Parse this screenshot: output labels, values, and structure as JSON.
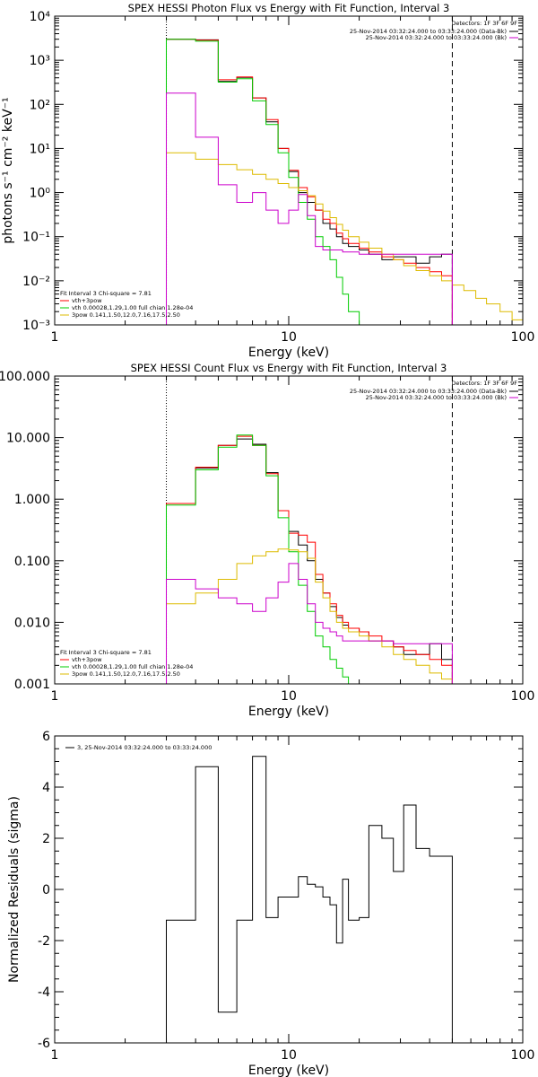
{
  "chart_data": [
    {
      "type": "line",
      "step": true,
      "title": "SPEX HESSI Photon Flux vs Energy with Fit Function, Interval 3",
      "xlabel": "Energy (keV)",
      "ylabel": "photons s⁻¹ cm⁻² keV⁻¹",
      "xscale": "log",
      "yscale": "log",
      "xlim": [
        1,
        100
      ],
      "ylim": [
        0.001,
        10000
      ],
      "x_ticks": [
        {
          "value": 1,
          "label": "1"
        },
        {
          "value": 10,
          "label": "10"
        },
        {
          "value": 100,
          "label": "100"
        }
      ],
      "y_ticks": [
        {
          "value": 0.001,
          "label": "10⁻³"
        },
        {
          "value": 0.01,
          "label": "10⁻²"
        },
        {
          "value": 0.1,
          "label": "10⁻¹"
        },
        {
          "value": 1,
          "label": "10⁰"
        },
        {
          "value": 10,
          "label": "10¹"
        },
        {
          "value": 100,
          "label": "10²"
        },
        {
          "value": 1000,
          "label": "10³"
        },
        {
          "value": 10000,
          "label": "10⁴"
        }
      ],
      "vlines": [
        {
          "x": 3,
          "style": "dotted",
          "color": "#000000"
        },
        {
          "x": 50,
          "style": "dashed",
          "color": "#000000"
        }
      ],
      "legend_top_right": {
        "header": "Detectors: 1F 3F 6F 9F",
        "entries": [
          {
            "text": "25-Nov-2014 03:32:24.000 to 03:33:24.000 (Data-Bk)",
            "color": "#000000"
          },
          {
            "text": "25-Nov-2014 03:32:24.000 to 03:33:24.000 (Bk)",
            "color": "#cc00cc"
          }
        ]
      },
      "legend_bottom_left": {
        "header": "Fit Interval 3   Chi-square = 7.81",
        "entries": [
          {
            "text": "vth+3pow",
            "color": "#ff0000"
          },
          {
            "text": "vth 0.00028,1.29,1.00  full chian 1.28e-04",
            "color": "#00cc00"
          },
          {
            "text": "3pow 0.141,1.50,12.0,7.16,17.5,2.50",
            "color": "#ddbb00"
          }
        ]
      },
      "series": [
        {
          "color": "#000000",
          "edges": [
            3,
            4,
            5,
            6,
            7,
            8,
            9,
            10,
            11,
            12,
            13,
            14,
            15,
            16,
            17,
            18,
            20,
            22,
            25,
            28,
            31,
            35,
            40,
            45,
            50
          ],
          "values": [
            3000,
            2900,
            330,
            410,
            140,
            40,
            10,
            3.0,
            1.0,
            0.6,
            0.4,
            0.2,
            0.15,
            0.1,
            0.07,
            0.06,
            0.05,
            0.04,
            0.03,
            0.035,
            0.035,
            0.025,
            0.035,
            0.04
          ]
        },
        {
          "name": "vth+3pow",
          "color": "#ff0000",
          "edges": [
            3,
            4,
            5,
            6,
            7,
            8,
            9,
            10,
            11,
            12,
            13,
            14,
            15,
            16,
            17,
            18,
            20,
            22,
            25,
            28,
            31,
            35,
            40,
            45,
            50
          ],
          "values": [
            3000,
            2850,
            360,
            420,
            140,
            45,
            10,
            3.2,
            1.3,
            0.8,
            0.4,
            0.25,
            0.2,
            0.12,
            0.09,
            0.07,
            0.055,
            0.045,
            0.035,
            0.03,
            0.025,
            0.02,
            0.016,
            0.013
          ]
        },
        {
          "name": "vth 0.00028,1.29,1.00  full chian 1.28e-04",
          "color": "#00cc00",
          "edges": [
            3,
            4,
            5,
            6,
            7,
            8,
            9,
            10,
            11,
            12,
            13,
            14,
            15,
            16,
            17,
            18,
            20
          ],
          "values": [
            3000,
            2700,
            320,
            380,
            120,
            35,
            8,
            2.2,
            0.6,
            0.25,
            0.1,
            0.06,
            0.03,
            0.012,
            0.005,
            0.002
          ]
        },
        {
          "name": "3pow 0.141,1.50,12.0,7.16,17.5,2.50",
          "color": "#ddbb00",
          "edges": [
            3,
            4,
            5,
            6,
            7,
            8,
            9,
            10,
            11,
            12,
            13,
            14,
            15,
            16,
            17,
            18,
            20,
            22,
            25,
            28,
            31,
            35,
            40,
            45,
            50,
            56,
            63,
            70,
            80,
            90,
            100
          ],
          "values": [
            8.0,
            5.7,
            4.3,
            3.3,
            2.6,
            2.0,
            1.6,
            1.3,
            1.1,
            0.85,
            0.55,
            0.38,
            0.27,
            0.19,
            0.14,
            0.1,
            0.075,
            0.055,
            0.04,
            0.03,
            0.022,
            0.017,
            0.013,
            0.01,
            0.008,
            0.006,
            0.004,
            0.003,
            0.002,
            0.0013
          ]
        },
        {
          "color": "#cc00cc",
          "edges": [
            3,
            4,
            5,
            6,
            7,
            8,
            9,
            10,
            11,
            12,
            13,
            14,
            15,
            16,
            17,
            18,
            20,
            22,
            25,
            28,
            31,
            35,
            40,
            45,
            50
          ],
          "values": [
            180,
            18,
            1.5,
            0.6,
            1.0,
            0.4,
            0.2,
            0.4,
            0.9,
            0.3,
            0.06,
            0.05,
            0.05,
            0.05,
            0.045,
            0.045,
            0.04,
            0.04,
            0.04,
            0.04,
            0.04,
            0.04,
            0.04,
            0.04
          ]
        }
      ]
    },
    {
      "type": "line",
      "step": true,
      "title": "SPEX HESSI Count Flux vs Energy with Fit Function, Interval 3",
      "xlabel": "Energy (keV)",
      "ylabel": "",
      "xscale": "log",
      "yscale": "log",
      "xlim": [
        1,
        100
      ],
      "ylim": [
        0.001,
        100
      ],
      "x_ticks": [
        {
          "value": 1,
          "label": "1"
        },
        {
          "value": 10,
          "label": "10"
        },
        {
          "value": 100,
          "label": "100"
        }
      ],
      "y_ticks": [
        {
          "value": 0.001,
          "label": "0.001"
        },
        {
          "value": 0.01,
          "label": "0.010"
        },
        {
          "value": 0.1,
          "label": "0.100"
        },
        {
          "value": 1,
          "label": "1.000"
        },
        {
          "value": 10,
          "label": "10.000"
        },
        {
          "value": 100,
          "label": "100.000"
        }
      ],
      "vlines": [
        {
          "x": 3,
          "style": "dotted",
          "color": "#000000"
        },
        {
          "x": 50,
          "style": "dashed",
          "color": "#000000"
        }
      ],
      "legend_top_right": {
        "header": "Detectors: 1F 3F 6F 9F",
        "entries": [
          {
            "text": "25-Nov-2014 03:32:24.000 to 03:33:24.000 (Data-Bk)",
            "color": "#000000"
          },
          {
            "text": "25-Nov-2014 03:32:24.000 to 03:33:24.000 (Bk)",
            "color": "#cc00cc"
          }
        ]
      },
      "legend_bottom_left": {
        "header": "Fit Interval 3   Chi-square = 7.81",
        "entries": [
          {
            "text": "vth+3pow",
            "color": "#ff0000"
          },
          {
            "text": "vth 0.00028,1.29,1.00  full chian 1.28e-04",
            "color": "#00cc00"
          },
          {
            "text": "3pow 0.141,1.50,12.0,7.16,17.5,2.50",
            "color": "#ddbb00"
          }
        ]
      },
      "series": [
        {
          "color": "#000000",
          "edges": [
            3,
            4,
            5,
            6,
            7,
            8,
            9,
            10,
            11,
            12,
            13,
            14,
            15,
            16,
            17,
            18,
            20,
            22,
            25,
            28,
            31,
            35,
            40,
            45,
            50
          ],
          "values": [
            0.85,
            3.2,
            7.5,
            9.5,
            7.8,
            2.7,
            0.65,
            0.3,
            0.18,
            0.1,
            0.05,
            0.03,
            0.018,
            0.012,
            0.009,
            0.008,
            0.007,
            0.005,
            0.005,
            0.004,
            0.003,
            0.003,
            0.0045,
            0.0025
          ]
        },
        {
          "name": "vth+3pow",
          "color": "#ff0000",
          "edges": [
            3,
            4,
            5,
            6,
            7,
            8,
            9,
            10,
            11,
            12,
            13,
            14,
            15,
            16,
            17,
            18,
            20,
            22,
            25,
            28,
            31,
            35,
            40,
            45,
            50
          ],
          "values": [
            0.85,
            3.3,
            7.5,
            10.5,
            7.5,
            2.6,
            0.65,
            0.28,
            0.26,
            0.2,
            0.06,
            0.03,
            0.02,
            0.013,
            0.01,
            0.008,
            0.007,
            0.006,
            0.005,
            0.004,
            0.0035,
            0.003,
            0.0025,
            0.002
          ]
        },
        {
          "name": "vth 0.00028,1.29,1.00  full chian 1.28e-04",
          "color": "#00cc00",
          "edges": [
            3,
            4,
            5,
            6,
            7,
            8,
            9,
            10,
            11,
            12,
            13,
            14,
            15,
            16,
            17,
            18,
            20
          ],
          "values": [
            0.8,
            3.0,
            7.0,
            11.0,
            7.5,
            2.4,
            0.5,
            0.14,
            0.04,
            0.015,
            0.006,
            0.004,
            0.0025,
            0.0018,
            0.0013,
            0.001
          ]
        },
        {
          "name": "3pow 0.141,1.50,12.0,7.16,17.5,2.50",
          "color": "#ddbb00",
          "edges": [
            3,
            4,
            5,
            6,
            7,
            8,
            9,
            10,
            11,
            12,
            13,
            14,
            15,
            16,
            17,
            18,
            20,
            22,
            25,
            28,
            31,
            35,
            40,
            45,
            50
          ],
          "values": [
            0.02,
            0.03,
            0.05,
            0.09,
            0.12,
            0.14,
            0.155,
            0.15,
            0.14,
            0.11,
            0.045,
            0.025,
            0.015,
            0.01,
            0.008,
            0.007,
            0.006,
            0.005,
            0.004,
            0.003,
            0.0025,
            0.002,
            0.0015,
            0.0012
          ]
        },
        {
          "color": "#cc00cc",
          "edges": [
            3,
            4,
            5,
            6,
            7,
            8,
            9,
            10,
            11,
            12,
            13,
            14,
            15,
            16,
            17,
            18,
            20,
            22,
            25,
            28,
            31,
            35,
            40,
            45,
            50
          ],
          "values": [
            0.05,
            0.035,
            0.025,
            0.02,
            0.015,
            0.025,
            0.045,
            0.09,
            0.05,
            0.02,
            0.01,
            0.008,
            0.007,
            0.006,
            0.005,
            0.005,
            0.005,
            0.005,
            0.005,
            0.0045,
            0.0045,
            0.0045,
            0.0045,
            0.0045
          ]
        }
      ]
    },
    {
      "type": "line",
      "step": true,
      "title": "",
      "xlabel": "Energy (keV)",
      "ylabel": "Normalized Residuals (sigma)",
      "xscale": "log",
      "yscale": "linear",
      "xlim": [
        1,
        100
      ],
      "ylim": [
        -6,
        6
      ],
      "x_ticks": [
        {
          "value": 1,
          "label": "1"
        },
        {
          "value": 10,
          "label": "10"
        },
        {
          "value": 100,
          "label": "100"
        }
      ],
      "y_ticks": [
        {
          "value": -6,
          "label": "-6"
        },
        {
          "value": -4,
          "label": "-4"
        },
        {
          "value": -2,
          "label": "-2"
        },
        {
          "value": 0,
          "label": "0"
        },
        {
          "value": 2,
          "label": "2"
        },
        {
          "value": 4,
          "label": "4"
        },
        {
          "value": 6,
          "label": "6"
        }
      ],
      "vlines": [],
      "legend_top_left": {
        "header": "",
        "entries": [
          {
            "text": "3, 25-Nov-2014 03:32:24.000 to 03:33:24.000",
            "color": "#000000"
          }
        ]
      },
      "series": [
        {
          "name": "3, 25-Nov-2014 03:32:24.000 to 03:33:24.000",
          "color": "#000000",
          "edges": [
            3,
            4,
            5,
            6,
            7,
            8,
            9,
            10,
            11,
            12,
            13,
            14,
            15,
            16,
            17,
            18,
            20,
            22,
            25,
            28,
            31,
            35,
            40,
            45,
            50
          ],
          "values": [
            -1.2,
            4.8,
            -4.8,
            -1.2,
            5.2,
            -1.1,
            -0.3,
            -0.3,
            0.5,
            0.2,
            0.1,
            -0.3,
            -0.6,
            -2.1,
            0.4,
            -1.2,
            -1.1,
            2.5,
            2.0,
            0.7,
            3.3,
            1.6,
            1.3,
            1.3
          ]
        }
      ]
    }
  ]
}
